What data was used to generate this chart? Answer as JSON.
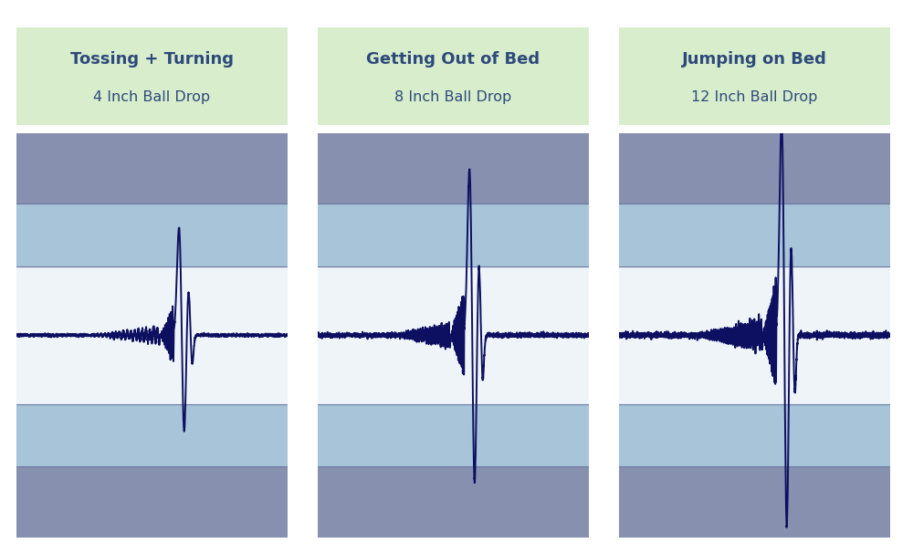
{
  "title1": "Tossing + Turning",
  "subtitle1": "4 Inch Ball Drop",
  "title2": "Getting Out of Bed",
  "subtitle2": "8 Inch Ball Drop",
  "title3": "Jumping on Bed",
  "subtitle3": "12 Inch Ball Drop",
  "label_box_color": "#d8edcc",
  "label_text_color": "#2d4a7a",
  "fig_bg": "#ffffff",
  "panel_dark": "#8890b0",
  "panel_mid": "#a8c4d8",
  "panel_light": "#c8dcea",
  "panel_white": "#eef4f8",
  "panel_border": "#6878a0",
  "line_color": "#0d1060"
}
